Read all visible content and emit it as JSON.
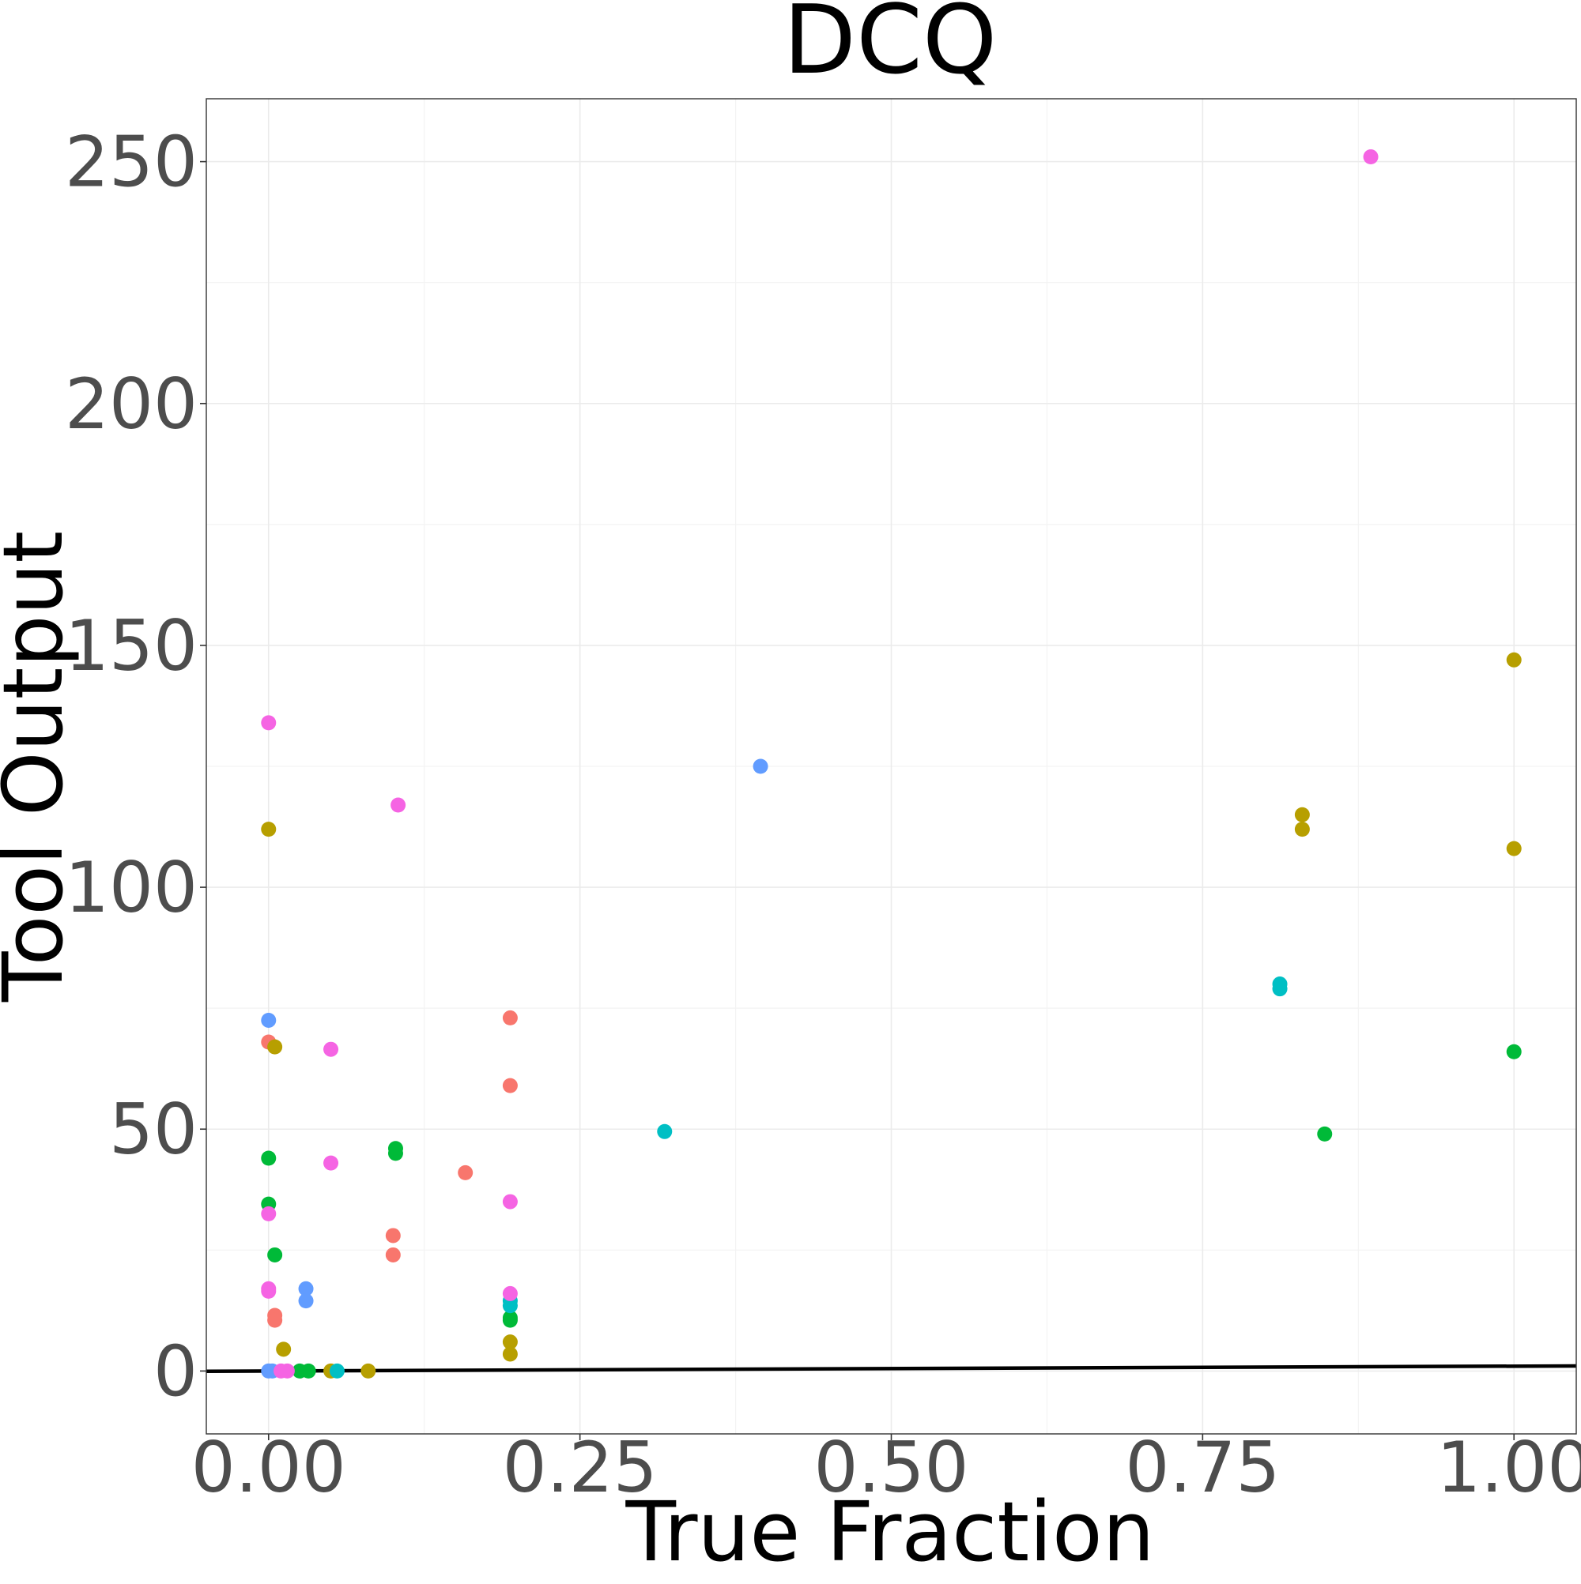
{
  "chart_data": {
    "type": "scatter",
    "title": "DCQ",
    "xlabel": "True Fraction",
    "ylabel": "Tool Output",
    "xlim": [
      -0.05,
      1.05
    ],
    "ylim": [
      -13,
      263
    ],
    "x_ticks": [
      {
        "value": 0.0,
        "label": "0.00"
      },
      {
        "value": 0.25,
        "label": "0.25"
      },
      {
        "value": 0.5,
        "label": "0.50"
      },
      {
        "value": 0.75,
        "label": "0.75"
      },
      {
        "value": 1.0,
        "label": "1.00"
      }
    ],
    "y_ticks": [
      {
        "value": 0,
        "label": "0"
      },
      {
        "value": 50,
        "label": "50"
      },
      {
        "value": 100,
        "label": "100"
      },
      {
        "value": 150,
        "label": "150"
      },
      {
        "value": 200,
        "label": "200"
      },
      {
        "value": 250,
        "label": "250"
      }
    ],
    "grid": true,
    "legend": "none",
    "reference_line": {
      "slope": 1,
      "intercept": 0,
      "color": "#000000"
    },
    "series": [
      {
        "color": "#F8766D",
        "points": [
          [
            0.0,
            68
          ],
          [
            0.005,
            11.5
          ],
          [
            0.005,
            10.5
          ],
          [
            0.1,
            28
          ],
          [
            0.1,
            24
          ],
          [
            0.158,
            41
          ],
          [
            0.194,
            73
          ],
          [
            0.194,
            59
          ]
        ]
      },
      {
        "color": "#B79F00",
        "points": [
          [
            0.0,
            112
          ],
          [
            0.005,
            67
          ],
          [
            0.012,
            4.5
          ],
          [
            0.05,
            0
          ],
          [
            0.08,
            0
          ],
          [
            0.194,
            6
          ],
          [
            0.194,
            3.5
          ],
          [
            0.83,
            115
          ],
          [
            0.83,
            112
          ],
          [
            1.0,
            147
          ],
          [
            1.0,
            108
          ]
        ]
      },
      {
        "color": "#00BA38",
        "points": [
          [
            0.0,
            44
          ],
          [
            0.0,
            34.5
          ],
          [
            0.005,
            24
          ],
          [
            0.025,
            0
          ],
          [
            0.032,
            0
          ],
          [
            0.102,
            46
          ],
          [
            0.102,
            45
          ],
          [
            0.194,
            11
          ],
          [
            0.194,
            10.5
          ],
          [
            0.848,
            49
          ],
          [
            1.0,
            66
          ]
        ]
      },
      {
        "color": "#00BFC4",
        "points": [
          [
            0.055,
            0
          ],
          [
            0.194,
            14.5
          ],
          [
            0.194,
            13.5
          ],
          [
            0.318,
            49.5
          ],
          [
            0.812,
            80
          ],
          [
            0.812,
            79
          ]
        ]
      },
      {
        "color": "#619CFF",
        "points": [
          [
            0.0,
            0
          ],
          [
            0.0,
            72.5
          ],
          [
            0.003,
            0
          ],
          [
            0.03,
            17
          ],
          [
            0.03,
            14.5
          ],
          [
            0.395,
            125
          ]
        ]
      },
      {
        "color": "#F564E3",
        "points": [
          [
            0.0,
            134
          ],
          [
            0.0,
            32.5
          ],
          [
            0.0,
            17
          ],
          [
            0.0,
            16.5
          ],
          [
            0.01,
            0
          ],
          [
            0.015,
            0
          ],
          [
            0.05,
            66.5
          ],
          [
            0.05,
            43
          ],
          [
            0.104,
            117
          ],
          [
            0.194,
            35
          ],
          [
            0.194,
            16
          ],
          [
            0.885,
            251
          ]
        ]
      }
    ]
  }
}
